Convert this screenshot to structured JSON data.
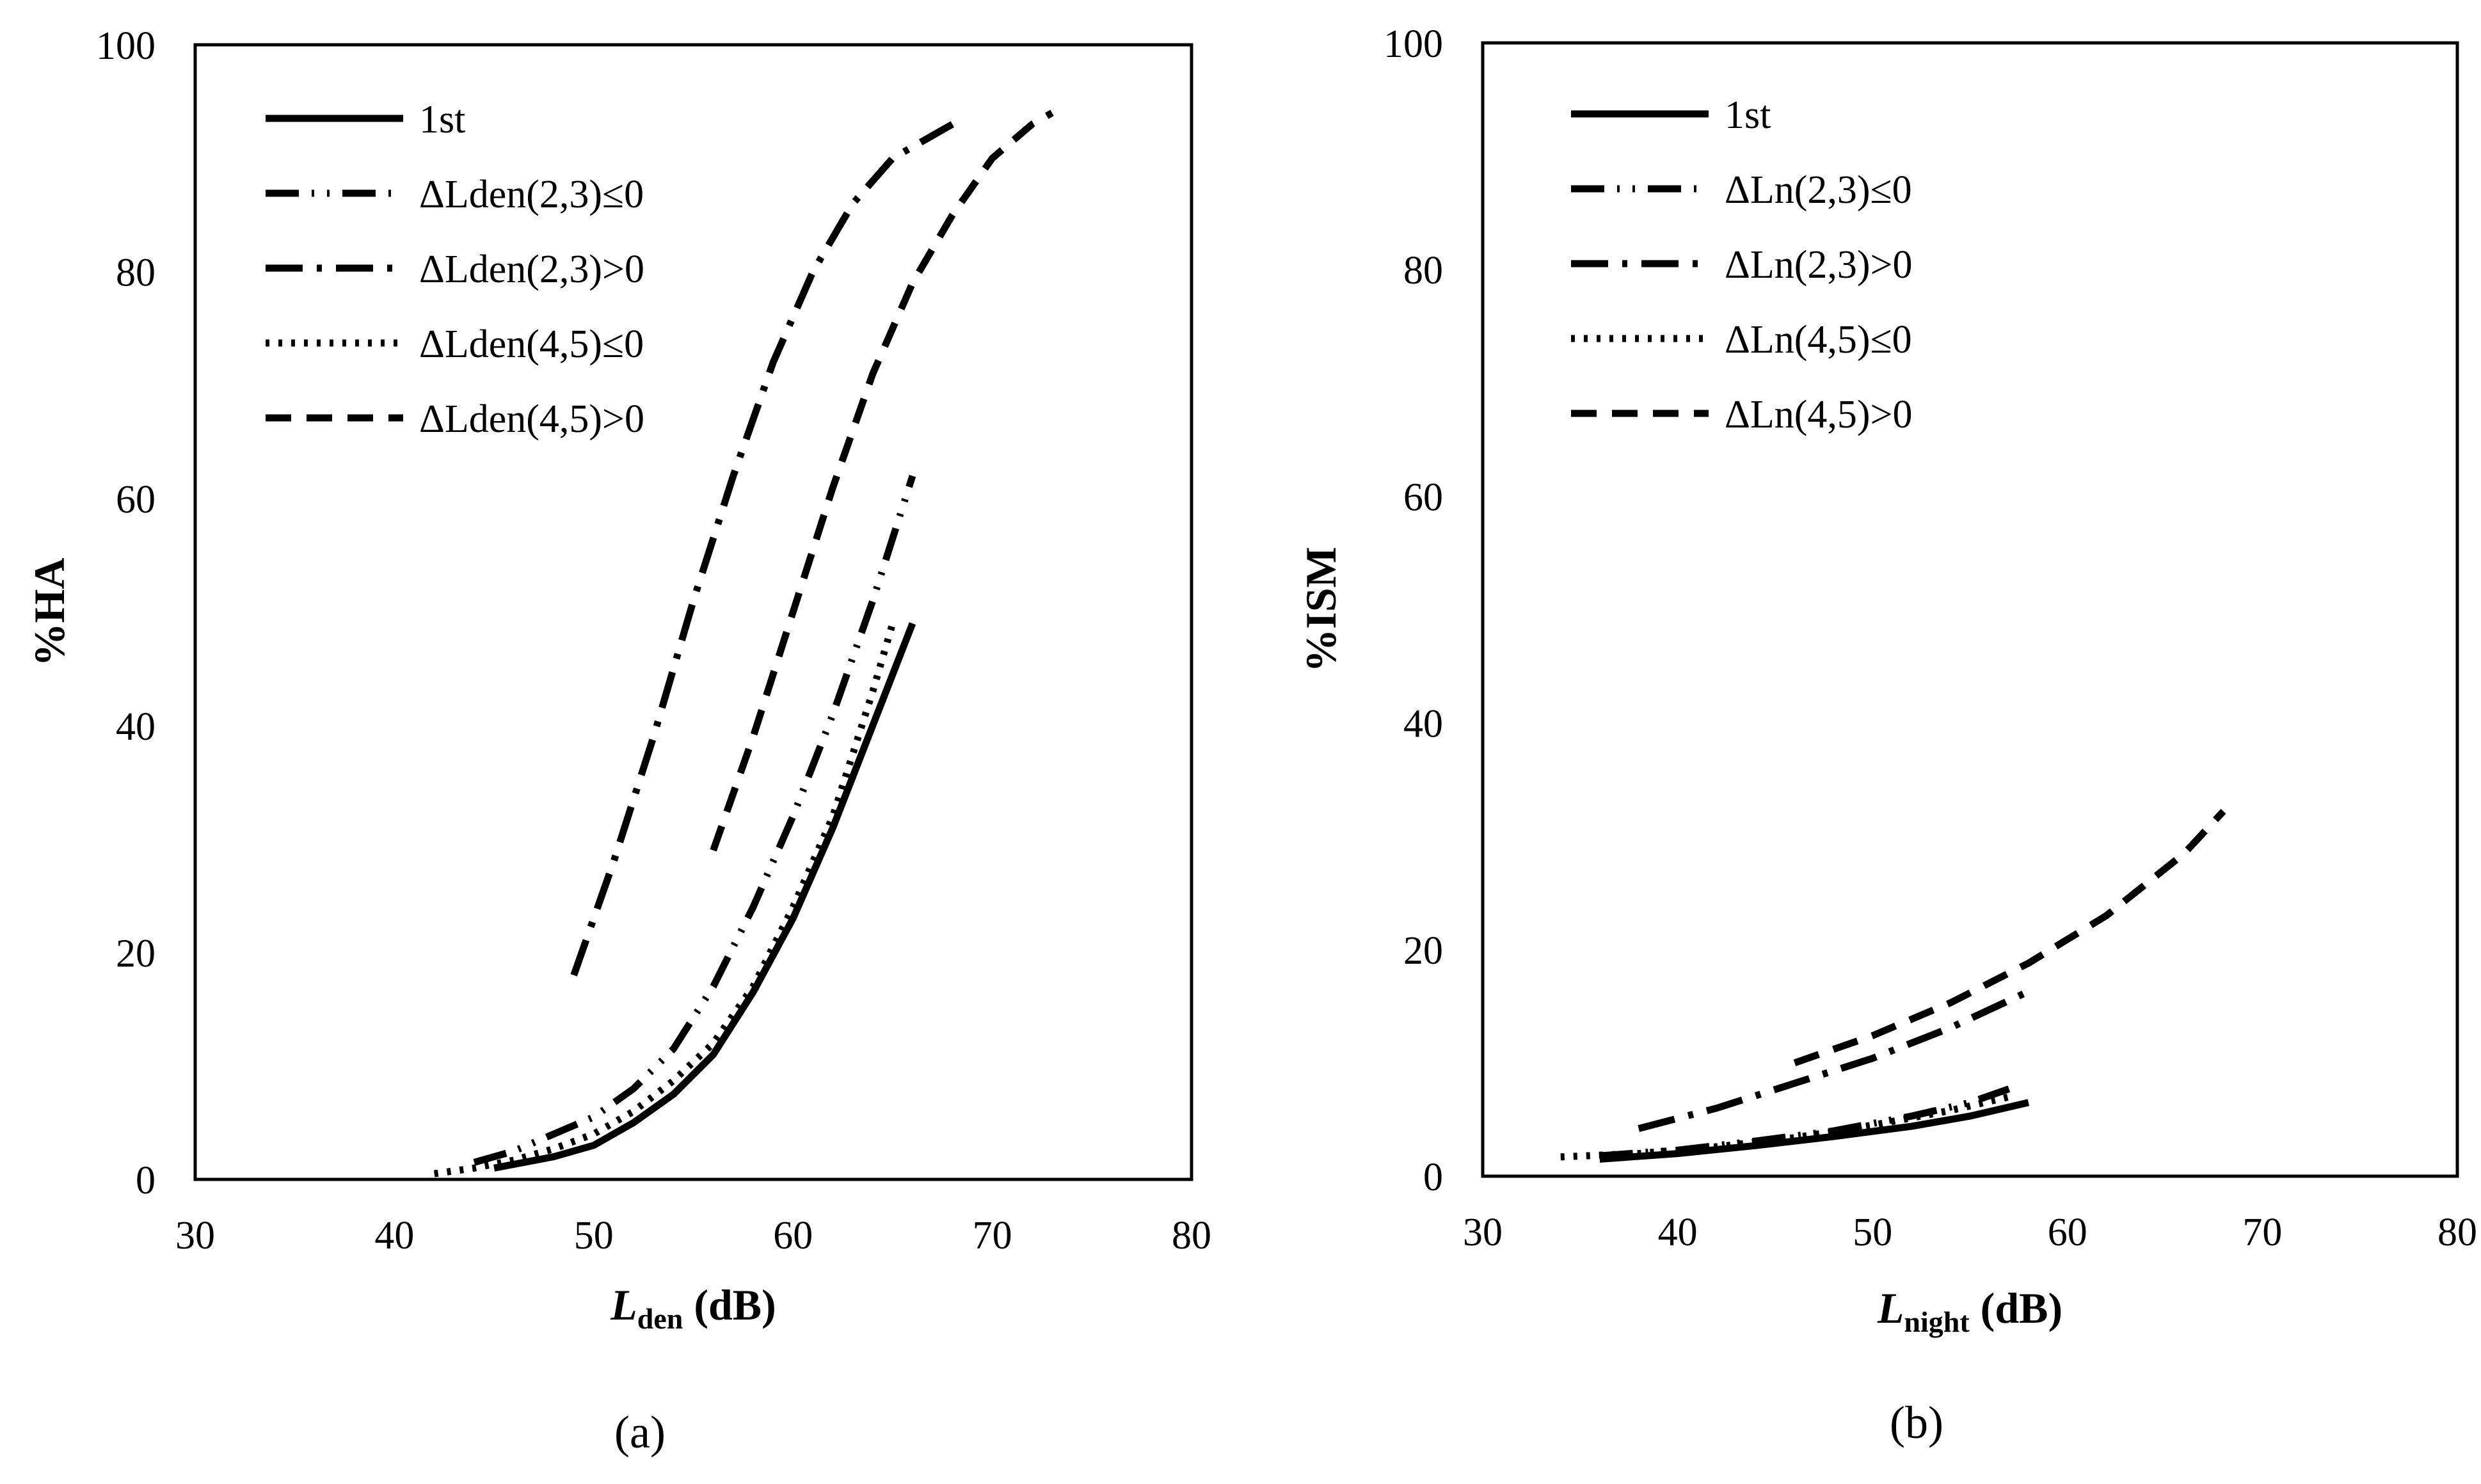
{
  "chart_data": [
    {
      "id": "a",
      "type": "line",
      "panel_label": "(a)",
      "xlabel": "L",
      "xlabel_sub": "den",
      "xlabel_unit": "(dB)",
      "ylabel": "%HA",
      "xlim": [
        30,
        80
      ],
      "ylim": [
        0,
        100
      ],
      "xticks": [
        30,
        40,
        50,
        60,
        70,
        80
      ],
      "yticks": [
        0,
        20,
        40,
        60,
        80,
        100
      ],
      "legend_position": "top-left",
      "series": [
        {
          "name": "1st",
          "style": "solid",
          "x": [
            45,
            48,
            50,
            52,
            54,
            56,
            58,
            60,
            62,
            64,
            66
          ],
          "y": [
            1,
            2,
            3,
            5,
            7.5,
            11,
            16.5,
            23,
            31,
            40,
            49
          ]
        },
        {
          "name": "ΔLden(2,3)≤0",
          "style": "dash-dot-dot",
          "x": [
            44,
            46,
            48,
            50,
            52,
            54,
            56,
            58,
            60,
            62,
            64,
            66
          ],
          "y": [
            1.5,
            2.5,
            4,
            5.5,
            8,
            11.5,
            17,
            24,
            32,
            41,
            51,
            62
          ]
        },
        {
          "name": "ΔLden(2,3)>0",
          "style": "dash-dot",
          "x": [
            49,
            51,
            53,
            55,
            57,
            59,
            61,
            63,
            65,
            67,
            68
          ],
          "y": [
            18,
            28,
            39,
            51,
            62,
            72,
            80,
            86,
            90,
            92,
            93
          ]
        },
        {
          "name": "ΔLden(4,5)≤0",
          "style": "dotted",
          "x": [
            42,
            44,
            46,
            48,
            50,
            52,
            54,
            56,
            58,
            60,
            62,
            64,
            65
          ],
          "y": [
            0.5,
            1,
            1.7,
            2.7,
            4,
            6,
            8.7,
            12,
            17,
            24,
            32,
            43,
            49
          ]
        },
        {
          "name": "ΔLden(4,5)>0",
          "style": "dashed",
          "x": [
            56,
            58,
            60,
            62,
            64,
            66,
            68,
            70,
            72,
            73
          ],
          "y": [
            29,
            39,
            50,
            61,
            71,
            79,
            85,
            90,
            93,
            94
          ]
        }
      ]
    },
    {
      "id": "b",
      "type": "line",
      "panel_label": "(b)",
      "xlabel": "L",
      "xlabel_sub": "night",
      "xlabel_unit": "(dB)",
      "ylabel": "%ISM",
      "xlim": [
        30,
        80
      ],
      "ylim": [
        0,
        100
      ],
      "xticks": [
        30,
        40,
        50,
        60,
        70,
        80
      ],
      "yticks": [
        0,
        20,
        40,
        60,
        80,
        100
      ],
      "legend_position": "top-left",
      "series": [
        {
          "name": "1st",
          "style": "solid",
          "x": [
            36,
            40,
            44,
            48,
            52,
            55,
            58
          ],
          "y": [
            1.5,
            2,
            2.7,
            3.5,
            4.4,
            5.3,
            6.5
          ]
        },
        {
          "name": "ΔLn(2,3)≤0",
          "style": "dash-dot-dot",
          "x": [
            36,
            40,
            44,
            48,
            52,
            55,
            57
          ],
          "y": [
            1.8,
            2.3,
            3.1,
            4,
            5.3,
            6.5,
            7.7
          ]
        },
        {
          "name": "ΔLn(2,3)>0",
          "style": "dash-dot",
          "x": [
            38,
            42,
            46,
            50,
            54,
            58
          ],
          "y": [
            4.2,
            6,
            8.2,
            10.4,
            13.1,
            16.3
          ]
        },
        {
          "name": "ΔLn(4,5)≤0",
          "style": "dotted",
          "x": [
            34,
            38,
            42,
            46,
            50,
            54,
            57
          ],
          "y": [
            1.7,
            2,
            2.6,
            3.4,
            4.5,
            5.8,
            7
          ]
        },
        {
          "name": "ΔLn(4,5)>0",
          "style": "dashed",
          "x": [
            46,
            50,
            54,
            58,
            62,
            66,
            68
          ],
          "y": [
            10,
            12.4,
            15.3,
            18.8,
            23,
            28.5,
            32.2
          ]
        }
      ]
    }
  ]
}
